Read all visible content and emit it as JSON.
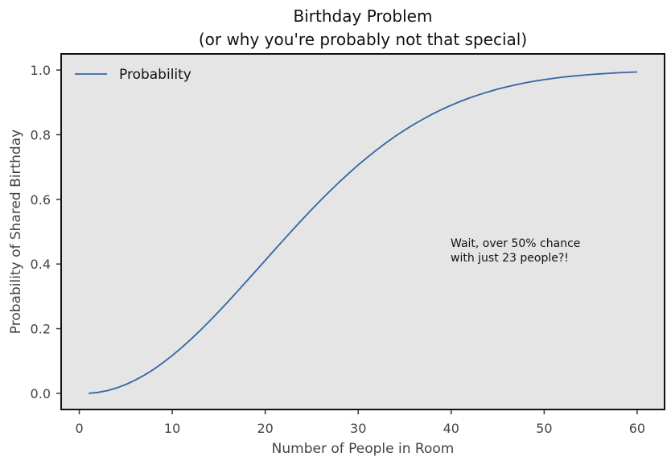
{
  "chart_data": {
    "type": "line",
    "title_line1": "Birthday Problem",
    "title_line2": "(or why you're probably not that special)",
    "xlabel": "Number of People in Room",
    "ylabel": "Probability of Shared Birthday",
    "xlim": [
      -1.95,
      62.95
    ],
    "ylim": [
      -0.05,
      1.05
    ],
    "xticks": [
      0,
      10,
      20,
      30,
      40,
      50,
      60
    ],
    "yticks": [
      0.0,
      0.2,
      0.4,
      0.6,
      0.8,
      1.0
    ],
    "ytick_labels": [
      "0.0",
      "0.2",
      "0.4",
      "0.6",
      "0.8",
      "1.0"
    ],
    "grid": false,
    "legend": {
      "position": "top-left",
      "entries": [
        "Probability"
      ]
    },
    "annotation": [
      "Wait, over 50% chance",
      "with just 23 people?!"
    ],
    "series": [
      {
        "name": "Probability",
        "color": "#3465a4",
        "x": [
          1,
          2,
          3,
          4,
          5,
          6,
          7,
          8,
          9,
          10,
          11,
          12,
          13,
          14,
          15,
          16,
          17,
          18,
          19,
          20,
          21,
          22,
          23,
          24,
          25,
          26,
          27,
          28,
          29,
          30,
          31,
          32,
          33,
          34,
          35,
          36,
          37,
          38,
          39,
          40,
          41,
          42,
          43,
          44,
          45,
          46,
          47,
          48,
          49,
          50,
          51,
          52,
          53,
          54,
          55,
          56,
          57,
          58,
          59,
          60
        ],
        "y": [
          0.0,
          0.0027,
          0.0082,
          0.0164,
          0.0271,
          0.0405,
          0.0562,
          0.0743,
          0.0946,
          0.1169,
          0.1411,
          0.167,
          0.1944,
          0.2231,
          0.2529,
          0.2836,
          0.315,
          0.3469,
          0.3791,
          0.4114,
          0.4437,
          0.4757,
          0.5073,
          0.5383,
          0.5687,
          0.5982,
          0.6269,
          0.6545,
          0.681,
          0.7063,
          0.7305,
          0.7533,
          0.775,
          0.7953,
          0.8144,
          0.8322,
          0.8487,
          0.8641,
          0.8782,
          0.8912,
          0.9032,
          0.914,
          0.9239,
          0.9329,
          0.941,
          0.9483,
          0.9548,
          0.9606,
          0.9658,
          0.9704,
          0.9744,
          0.978,
          0.9811,
          0.9839,
          0.9863,
          0.9883,
          0.9901,
          0.9917,
          0.993,
          0.9941
        ]
      }
    ]
  }
}
